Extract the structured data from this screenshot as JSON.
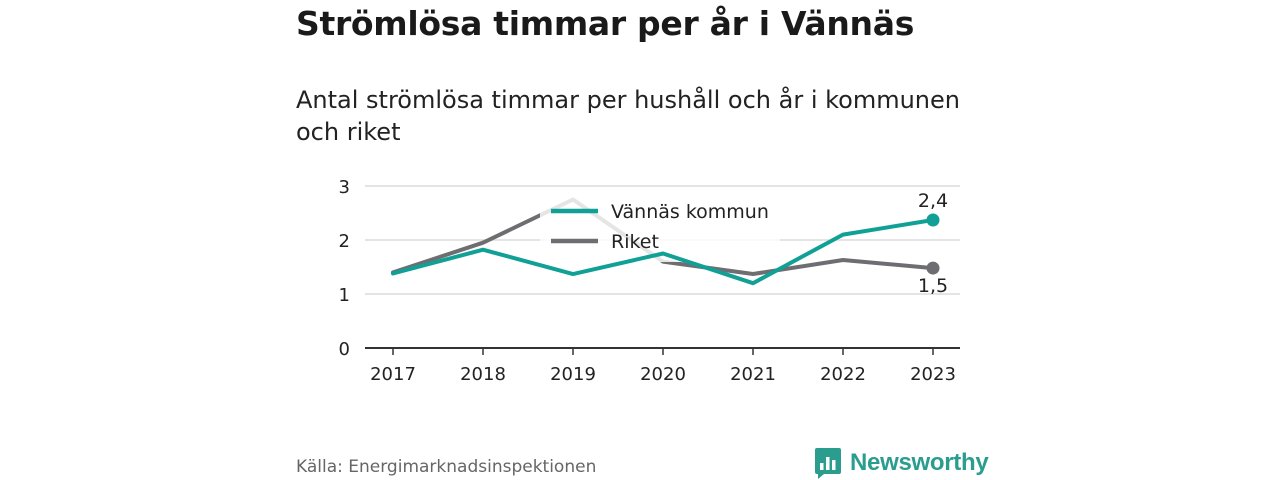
{
  "title": "Strömlösa timmar per år i Vännäs",
  "subtitle": "Antal strömlösa timmar per hushåll och år i kommunen och riket",
  "source": "Källa: Energimarknadsinspektionen",
  "brand": {
    "name": "Newsworthy",
    "icon": "newsworthy-logo-icon",
    "color": "#2a9d8f"
  },
  "chart_data": {
    "type": "line",
    "x": [
      "2017",
      "2018",
      "2019",
      "2020",
      "2021",
      "2022",
      "2023"
    ],
    "ylim": [
      0,
      3
    ],
    "yticks": [
      "0",
      "1",
      "2",
      "3"
    ],
    "grid": true,
    "legend": "top-center",
    "series": [
      {
        "name": "Riket",
        "color": "#6d6d72",
        "values": [
          1.4,
          1.95,
          2.75,
          1.6,
          1.37,
          1.63,
          1.48
        ],
        "end_label": "1,5"
      },
      {
        "name": "Vännäs kommun",
        "color": "#11a096",
        "values": [
          1.38,
          1.82,
          1.37,
          1.75,
          1.2,
          2.1,
          2.37
        ],
        "end_label": "2,4"
      }
    ]
  }
}
